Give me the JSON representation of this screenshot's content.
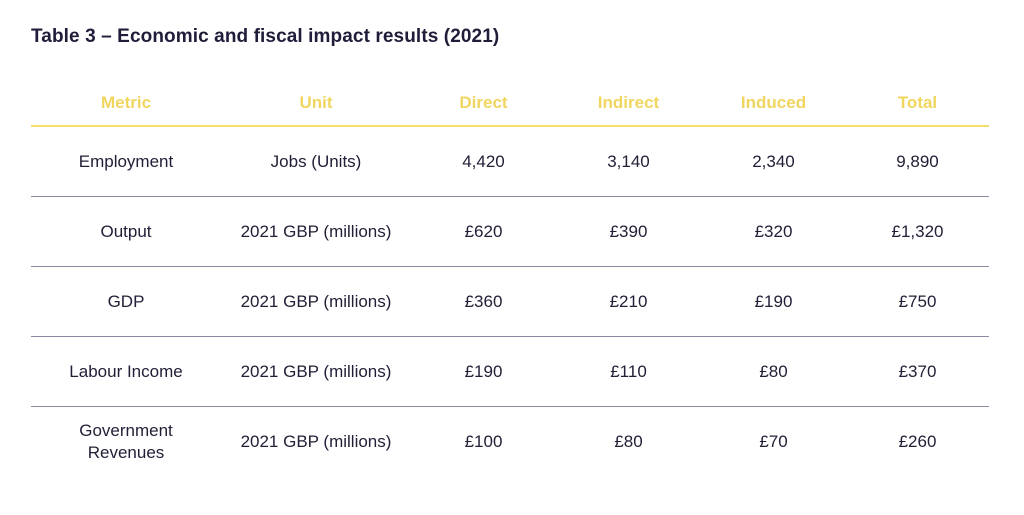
{
  "title": "Table 3 – Economic and fiscal impact results (2021)",
  "colors": {
    "header_text": "#f0d55f",
    "header_rule": "#f3de6a",
    "row_rule": "#8c8aa3",
    "body_text": "#222037",
    "title_text": "#1f1d3a"
  },
  "table": {
    "headers": [
      "Metric",
      "Unit",
      "Direct",
      "Indirect",
      "Induced",
      "Total"
    ],
    "rows": [
      [
        "Employment",
        "Jobs (Units)",
        "4,420",
        "3,140",
        "2,340",
        "9,890"
      ],
      [
        "Output",
        "2021 GBP (millions)",
        "£620",
        "£390",
        "£320",
        "£1,320"
      ],
      [
        "GDP",
        "2021 GBP (millions)",
        "£360",
        "£210",
        "£190",
        "£750"
      ],
      [
        "Labour Income",
        "2021 GBP (millions)",
        "£190",
        "£110",
        "£80",
        "£370"
      ],
      [
        "Government Revenues",
        "2021 GBP (millions)",
        "£100",
        "£80",
        "£70",
        "£260"
      ]
    ]
  }
}
